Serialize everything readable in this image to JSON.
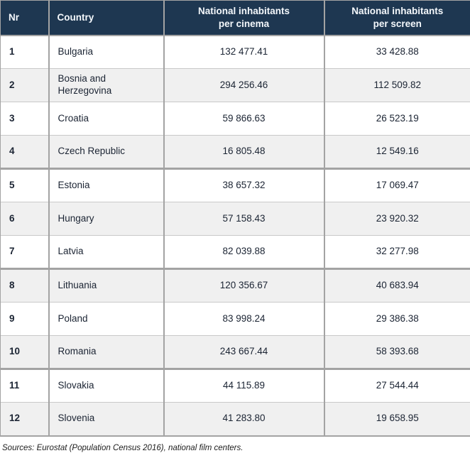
{
  "table": {
    "columns": [
      {
        "key": "nr",
        "label": "Nr"
      },
      {
        "key": "country",
        "label": "Country"
      },
      {
        "key": "per_cinema",
        "label": "National inhabitants\nper cinema"
      },
      {
        "key": "per_screen",
        "label": "National inhabitants\nper screen"
      }
    ],
    "rows": [
      {
        "nr": "1",
        "country": "Bulgaria",
        "per_cinema": "132 477.41",
        "per_screen": "33 428.88"
      },
      {
        "nr": "2",
        "country": "Bosnia and Herzegovina",
        "per_cinema": "294 256.46",
        "per_screen": "112 509.82"
      },
      {
        "nr": "3",
        "country": "Croatia",
        "per_cinema": "59 866.63",
        "per_screen": "26 523.19"
      },
      {
        "nr": "4",
        "country": "Czech Republic",
        "per_cinema": "16 805.48",
        "per_screen": "12 549.16"
      },
      {
        "nr": "5",
        "country": "Estonia",
        "per_cinema": "38 657.32",
        "per_screen": "17 069.47"
      },
      {
        "nr": "6",
        "country": "Hungary",
        "per_cinema": "57 158.43",
        "per_screen": "23 920.32"
      },
      {
        "nr": "7",
        "country": "Latvia",
        "per_cinema": "82 039.88",
        "per_screen": "32 277.98"
      },
      {
        "nr": "8",
        "country": "Lithuania",
        "per_cinema": "120 356.67",
        "per_screen": "40 683.94"
      },
      {
        "nr": "9",
        "country": "Poland",
        "per_cinema": "83 998.24",
        "per_screen": "29 386.38"
      },
      {
        "nr": "10",
        "country": "Romania",
        "per_cinema": "243 667.44",
        "per_screen": "58 393.68"
      },
      {
        "nr": "11",
        "country": "Slovakia",
        "per_cinema": "44 115.89",
        "per_screen": "27 544.44"
      },
      {
        "nr": "12",
        "country": "Slovenia",
        "per_cinema": "41 283.80",
        "per_screen": "19 658.95"
      }
    ]
  },
  "footer": {
    "sources": "Sources: Eurostat (Population Census 2016), national film centers."
  },
  "colors": {
    "header_bg": "#1e3751",
    "header_text": "#f4f8fc",
    "stripe_row_bg": "#f0f0f0",
    "row_bg": "#ffffff",
    "body_text": "#1b2433",
    "border_light": "#c9c9c9",
    "border_dark": "#a3a3a3"
  },
  "chart_data": {
    "type": "table",
    "title": "",
    "columns": [
      "Nr",
      "Country",
      "National inhabitants per cinema",
      "National inhabitants per screen"
    ],
    "rows": [
      [
        1,
        "Bulgaria",
        132477.41,
        33428.88
      ],
      [
        2,
        "Bosnia and Herzegovina",
        294256.46,
        112509.82
      ],
      [
        3,
        "Croatia",
        59866.63,
        26523.19
      ],
      [
        4,
        "Czech Republic",
        16805.48,
        12549.16
      ],
      [
        5,
        "Estonia",
        38657.32,
        17069.47
      ],
      [
        6,
        "Hungary",
        57158.43,
        23920.32
      ],
      [
        7,
        "Latvia",
        82039.88,
        32277.98
      ],
      [
        8,
        "Lithuania",
        120356.67,
        40683.94
      ],
      [
        9,
        "Poland",
        83998.24,
        29386.38
      ],
      [
        10,
        "Romania",
        243667.44,
        58393.68
      ],
      [
        11,
        "Slovakia",
        44115.89,
        27544.44
      ],
      [
        12,
        "Slovenia",
        41283.8,
        19658.95
      ]
    ],
    "source_note": "Sources: Eurostat (Population Census 2016), national film centers."
  }
}
